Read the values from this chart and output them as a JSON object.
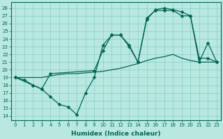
{
  "xlabel": "Humidex (Indice chaleur)",
  "bg_color": "#b8e8e0",
  "line_color": "#006655",
  "grid_color": "#88cccc",
  "xlim": [
    -0.5,
    23.5
  ],
  "ylim": [
    13.5,
    28.8
  ],
  "xticks": [
    0,
    1,
    2,
    3,
    4,
    5,
    6,
    7,
    8,
    9,
    10,
    11,
    12,
    13,
    14,
    15,
    16,
    17,
    18,
    19,
    20,
    21,
    22,
    23
  ],
  "yticks": [
    14,
    15,
    16,
    17,
    18,
    19,
    20,
    21,
    22,
    23,
    24,
    25,
    26,
    27,
    28
  ],
  "series": [
    {
      "x": [
        0,
        1,
        2,
        3,
        4,
        5,
        6,
        7,
        8,
        9,
        10,
        11,
        12,
        13,
        14,
        15,
        16,
        17,
        18,
        19,
        20,
        21,
        22,
        23
      ],
      "y": [
        19,
        18.7,
        18,
        17.5,
        16.5,
        15.5,
        15.2,
        14.2,
        17.0,
        19.0,
        23.2,
        24.5,
        24.5,
        23.0,
        21.0,
        26.7,
        27.7,
        27.7,
        27.7,
        27.0,
        27.0,
        21.0,
        23.5,
        21.0
      ],
      "has_markers": true
    },
    {
      "x": [
        0,
        2,
        3,
        4,
        9,
        10,
        11,
        12,
        13,
        14,
        15,
        16,
        17,
        18,
        19,
        20,
        21,
        22,
        23
      ],
      "y": [
        19,
        18,
        17.5,
        19.5,
        19.9,
        22.5,
        24.5,
        24.5,
        23.2,
        21.0,
        26.5,
        27.8,
        28.0,
        27.8,
        27.5,
        27.0,
        21.5,
        21.5,
        21.0
      ],
      "has_markers": true
    },
    {
      "x": [
        0,
        1,
        2,
        3,
        4,
        5,
        6,
        7,
        8,
        9,
        10,
        11,
        12,
        13,
        14,
        15,
        16,
        17,
        18,
        19,
        20,
        21,
        22,
        23
      ],
      "y": [
        19,
        19,
        19,
        19,
        19.2,
        19.4,
        19.5,
        19.5,
        19.6,
        19.7,
        19.8,
        20.0,
        20.2,
        20.5,
        20.8,
        21.2,
        21.5,
        21.7,
        22.0,
        21.5,
        21.2,
        21.0,
        21.0,
        21.0
      ],
      "has_markers": false
    }
  ],
  "markersize": 2.5,
  "linewidth": 0.9,
  "tick_fontsize": 5.0,
  "xlabel_fontsize": 6.5
}
